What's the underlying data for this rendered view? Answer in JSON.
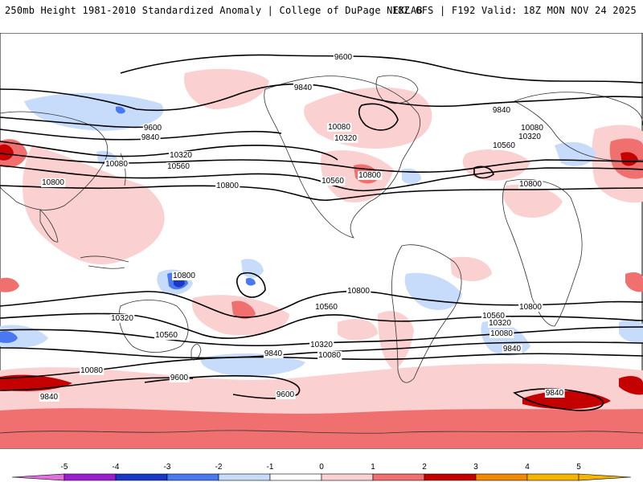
{
  "header": {
    "left": "250mb Height 1981-2010 Standardized Anomaly | College of DuPage NEXLAB",
    "right": "18Z GFS | F192 Valid: 18Z MON NOV 24 2025"
  },
  "colors": {
    "minus5": "#e070e0",
    "minus4": "#9a1fd0",
    "minus3": "#1838c8",
    "minus2": "#4a78f0",
    "minus1": "#c6dcfa",
    "zero": "#ffffff",
    "plus1": "#fbd0d0",
    "plus2": "#f07070",
    "plus3": "#c40000",
    "plus4": "#f08a00",
    "plus5": "#f5b400"
  },
  "contour_labels": [
    {
      "id": "9600-north",
      "text": "9600"
    },
    {
      "id": "9840-northpac",
      "text": "9840"
    },
    {
      "id": "9840-atl",
      "text": "9840"
    },
    {
      "id": "9600-asia",
      "text": "9600"
    },
    {
      "id": "9840-asia",
      "text": "9840"
    },
    {
      "id": "10080-asia",
      "text": "10080"
    },
    {
      "id": "10320-asia",
      "text": "10320"
    },
    {
      "id": "10560-asia",
      "text": "10560"
    },
    {
      "id": "10800-asia",
      "text": "10800"
    },
    {
      "id": "10800-mid",
      "text": "10800"
    },
    {
      "id": "10080-na",
      "text": "10080"
    },
    {
      "id": "10320-na",
      "text": "10320"
    },
    {
      "id": "10800-na",
      "text": "10800"
    },
    {
      "id": "10560-na",
      "text": "10560"
    },
    {
      "id": "10560-atl",
      "text": "10560"
    },
    {
      "id": "10080-eu",
      "text": "10080"
    },
    {
      "id": "10320-eu",
      "text": "10320"
    },
    {
      "id": "10800-af",
      "text": "10800"
    },
    {
      "id": "10800-aus",
      "text": "10800"
    },
    {
      "id": "10320-aus",
      "text": "10320"
    },
    {
      "id": "10560-aus",
      "text": "10560"
    },
    {
      "id": "10800-spac",
      "text": "10800"
    },
    {
      "id": "10560-spac",
      "text": "10560"
    },
    {
      "id": "10800-satl",
      "text": "10800"
    },
    {
      "id": "10560-satl",
      "text": "10560"
    },
    {
      "id": "10320-satl",
      "text": "10320"
    },
    {
      "id": "10080-satl",
      "text": "10080"
    },
    {
      "id": "10320-sa",
      "text": "10320"
    },
    {
      "id": "10080-sa",
      "text": "10080"
    },
    {
      "id": "9840-sa",
      "text": "9840"
    },
    {
      "id": "9840-spac",
      "text": "9840"
    },
    {
      "id": "9840-satl",
      "text": "9840"
    },
    {
      "id": "10080-sw",
      "text": "10080"
    },
    {
      "id": "9840-sw",
      "text": "9840"
    },
    {
      "id": "9600-sw",
      "text": "9600"
    },
    {
      "id": "9600-s",
      "text": "9600"
    },
    {
      "id": "9840-sio",
      "text": "9840"
    }
  ],
  "colorbar": {
    "ticks": [
      "-5",
      "-4",
      "-3",
      "-2",
      "-1",
      "0",
      "1",
      "2",
      "3",
      "4",
      "5"
    ]
  }
}
